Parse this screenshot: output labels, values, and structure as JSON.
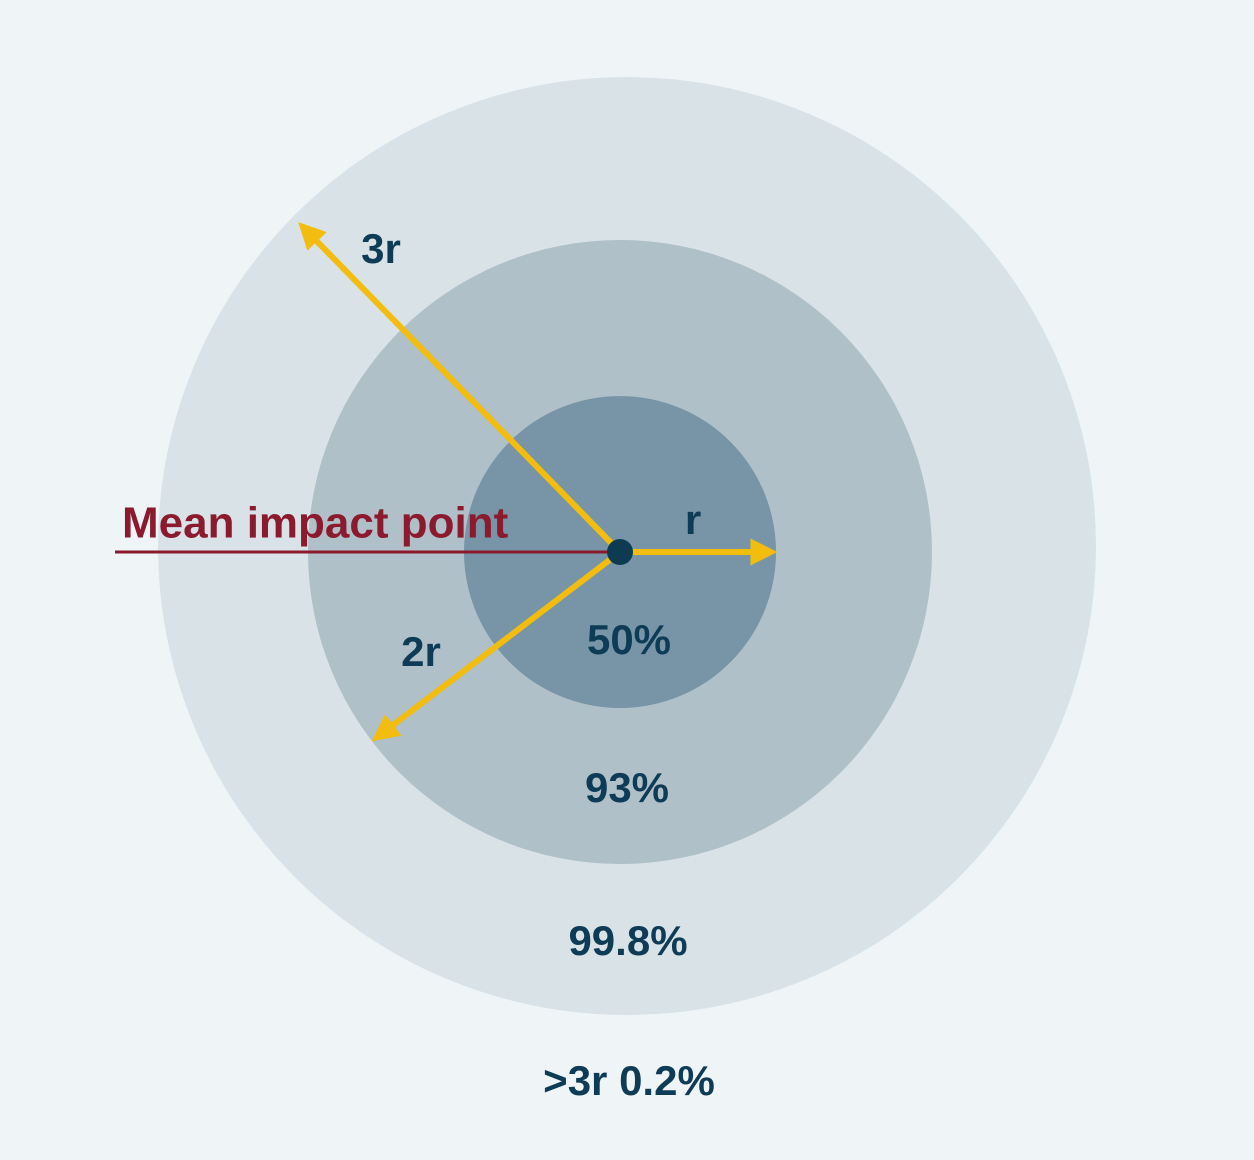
{
  "labels": {
    "r3": "3r",
    "r1": "r",
    "r2": "2r",
    "mean_impact_point": "Mean impact point"
  },
  "zones": {
    "inner": "50%",
    "middle": "93%",
    "outer": "99.8%",
    "beyond": ">3r 0.2%"
  }
}
